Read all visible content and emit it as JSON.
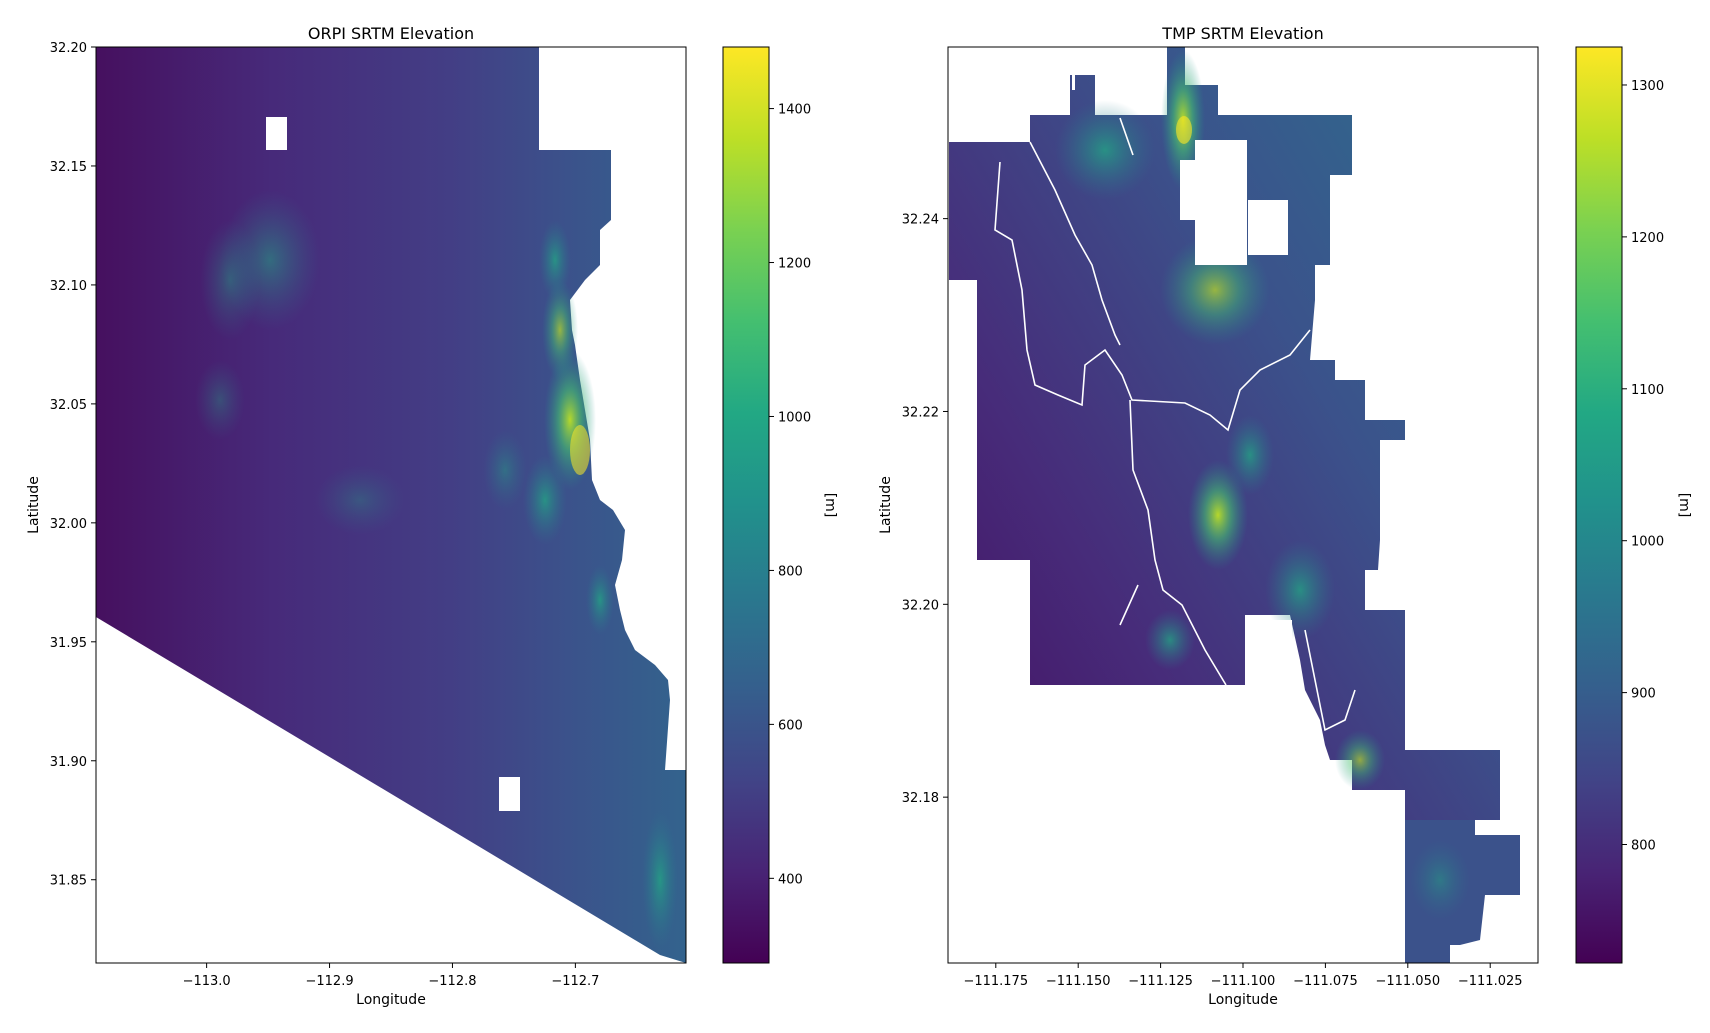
{
  "chart_data": [
    {
      "type": "heatmap",
      "title": "ORPI SRTM Elevation",
      "xlabel": "Longitude",
      "ylabel": "Latitude",
      "xlim": [
        -113.09,
        -112.61
      ],
      "ylim": [
        31.815,
        32.2
      ],
      "xticks": [
        -113.0,
        -112.9,
        -112.8,
        -112.7
      ],
      "xtick_labels": [
        "−113.0",
        "−112.9",
        "−112.8",
        "−112.7"
      ],
      "yticks": [
        31.85,
        31.9,
        31.95,
        32.0,
        32.05,
        32.1,
        32.15,
        32.2
      ],
      "ytick_labels": [
        "31.85",
        "31.90",
        "31.95",
        "32.00",
        "32.05",
        "32.10",
        "32.15",
        "32.20"
      ],
      "colormap": "viridis",
      "colorbar": {
        "label": "[m]",
        "range": [
          290,
          1480
        ],
        "ticks": [
          400,
          600,
          800,
          1000,
          1200,
          1400
        ],
        "tick_labels": [
          "400",
          "600",
          "800",
          "1000",
          "1200",
          "1400"
        ]
      }
    },
    {
      "type": "heatmap",
      "title": "TMP SRTM Elevation",
      "xlabel": "Longitude",
      "ylabel": "Latitude",
      "xlim": [
        -111.1895,
        -111.0105
      ],
      "ylim": [
        32.1628,
        32.2578
      ],
      "xticks": [
        -111.175,
        -111.15,
        -111.125,
        -111.1,
        -111.075,
        -111.05,
        -111.025
      ],
      "xtick_labels": [
        "−111.175",
        "−111.150",
        "−111.125",
        "−111.100",
        "−111.075",
        "−111.050",
        "−111.025"
      ],
      "yticks": [
        32.18,
        32.2,
        32.22,
        32.24
      ],
      "ytick_labels": [
        "32.18",
        "32.20",
        "32.22",
        "32.24"
      ],
      "colormap": "viridis",
      "colorbar": {
        "label": "[m]",
        "range": [
          722,
          1325
        ],
        "ticks": [
          800,
          900,
          1000,
          1100,
          1200,
          1300
        ],
        "tick_labels": [
          "800",
          "900",
          "1000",
          "1100",
          "1200",
          "1300"
        ]
      }
    }
  ]
}
